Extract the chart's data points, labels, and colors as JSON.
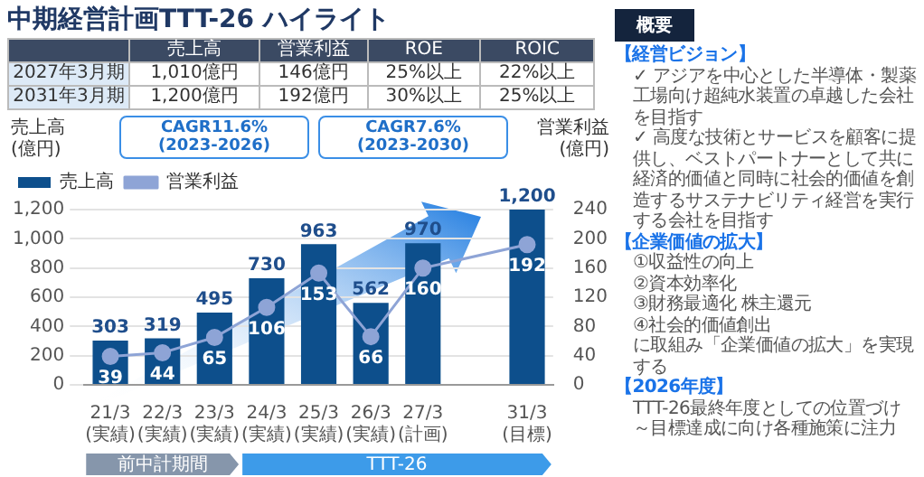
{
  "chart_data": [
    {
      "type": "other",
      "title": "中期経営計画TTT-26 ハイライト",
      "categories": [
        "売上高",
        "営業利益",
        "ROE",
        "ROIC"
      ],
      "y_categories": [
        "2027年3月期",
        "2031年3月期"
      ],
      "cell_labels": [
        [
          "1,010億円",
          "146億円",
          "25%以上",
          "22%以上"
        ],
        [
          "1,200億円",
          "192億円",
          "30%以上",
          "25%以上"
        ]
      ]
    },
    {
      "type": "bar",
      "categories": [
        "21/3(実績)",
        "22/3(実績)",
        "23/3(実績)",
        "24/3(実績)",
        "25/3(実績)",
        "26/3(実績)",
        "27/3(計画)",
        null,
        "31/3(目標)"
      ],
      "series": [
        {
          "name": "売上高",
          "type": "bar",
          "color": "#0d4f8c",
          "values": [
            303,
            319,
            495,
            730,
            963,
            562,
            970,
            null,
            1200
          ],
          "value_labels": [
            "303",
            "319",
            "495",
            "730",
            "963",
            "562",
            "970",
            null,
            "1,200"
          ]
        },
        {
          "name": "営業利益",
          "type": "line",
          "axis": "y2",
          "color": "#8ea4d6",
          "values": [
            39,
            44,
            65,
            106,
            153,
            66,
            160,
            null,
            192
          ],
          "value_labels": [
            "39",
            "44",
            "65",
            "106",
            "153",
            "66",
            "160",
            null,
            "192"
          ]
        }
      ],
      "ylabel": "売上高\n(億円)",
      "y2label": "営業利益\n(億円)",
      "ylim": [
        0,
        1200
      ],
      "yticks": [
        0,
        200,
        400,
        600,
        800,
        {
          "value": 1000,
          "label": "1,000"
        },
        {
          "value": 1200,
          "label": "1,200"
        }
      ],
      "y2lim": [
        0,
        240
      ],
      "y2ticks": [
        0,
        40,
        80,
        120,
        160,
        200,
        240
      ],
      "grid": "y",
      "legend": "top left",
      "marker": "circle",
      "annotations": [
        "CAGR11.6%\n(2023-2026)",
        "CAGR7.6%\n(2023-2030)",
        "前中計期間",
        "TTT-26"
      ]
    },
    {
      "type": "other",
      "title": "概要"
    },
    {
      "type": "other",
      "title": "【経営ビジョン】",
      "annotations": [
        "✓ アジアを中心とした半導体・製薬工場向け超純水装置の卓越した会社を目指す",
        "✓ 高度な技術とサービスを顧客に提供し、ベストパートナーとして共に経済的価値と同時に社会的価値を創造するサステナビリティ経営を実行する会社を目指す"
      ]
    },
    {
      "type": "other",
      "title": "【企業価値の拡大】",
      "annotations": [
        "①収益性の向上",
        "②資本効率化",
        "③財務最適化 株主還元",
        "④社会的価値創出",
        "に取組み「企業価値の拡大」を実現する"
      ]
    },
    {
      "type": "other",
      "title": "【2026年度】",
      "annotations": [
        "TTT-26最終年度としての位置づけ",
        "～目標達成に向け各種施策に注力"
      ]
    }
  ]
}
